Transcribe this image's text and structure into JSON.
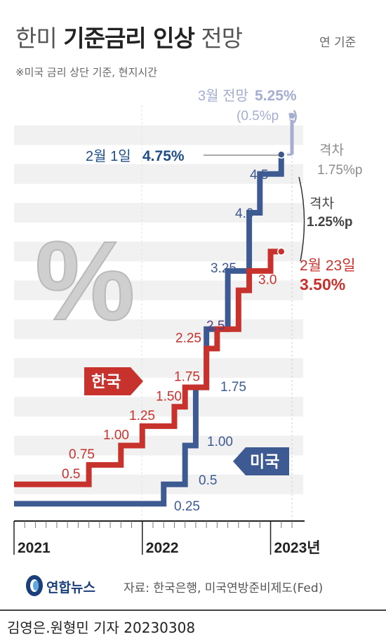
{
  "header": {
    "title_pre": "한미 ",
    "title_bold": "기준금리 인상",
    "title_post": " 전망",
    "basis": "연 기준",
    "note": "※미국 금리 상단 기준, 현지시간"
  },
  "footer": {
    "logo": "연합뉴스",
    "source": "자료: 한국은행, 미국연방준비제도(Fed)",
    "credit": "김영은.원형민 기자  20230308"
  },
  "colors": {
    "korea": "#c8322d",
    "us": "#3e5a93",
    "us_dark": "#1f4e87",
    "projection": "#a5add0",
    "gray": "#8c8c8c",
    "grid": "#f1f1f1",
    "purple": "#5a3a7a"
  },
  "chart_data": {
    "type": "line",
    "step": true,
    "title": "한미 기준금리 인상 전망",
    "ylim": [
      0,
      5.5
    ],
    "xlim": [
      "2021-01",
      "2023-03"
    ],
    "x_tick_labels": [
      "2021",
      "2022",
      "2023년"
    ],
    "grid": true,
    "badge": "%",
    "series": [
      {
        "name": "한국",
        "points": [
          {
            "x": "2021-01",
            "y": 0.5
          },
          {
            "x": "2021-08",
            "y": 0.75
          },
          {
            "x": "2021-11",
            "y": 1.0
          },
          {
            "x": "2022-01",
            "y": 1.25
          },
          {
            "x": "2022-04",
            "y": 1.5
          },
          {
            "x": "2022-05",
            "y": 1.75
          },
          {
            "x": "2022-07",
            "y": 2.25
          },
          {
            "x": "2022-08",
            "y": 2.5
          },
          {
            "x": "2022-10",
            "y": 3.0
          },
          {
            "x": "2022-11",
            "y": 3.25
          },
          {
            "x": "2023-01",
            "y": 3.5
          },
          {
            "x": "2023-02",
            "y": 3.5
          }
        ],
        "labels": [
          {
            "text": "0.5",
            "y": 0.5
          },
          {
            "text": "0.75",
            "y": 0.75
          },
          {
            "text": "1.00",
            "y": 1.0
          },
          {
            "text": "1.25",
            "y": 1.25
          },
          {
            "text": "1.50",
            "y": 1.5
          },
          {
            "text": "1.75",
            "y": 1.75
          },
          {
            "text": "2.25",
            "y": 2.25
          },
          {
            "text": "3.0",
            "y": 3.0
          }
        ]
      },
      {
        "name": "미국",
        "points": [
          {
            "x": "2021-01",
            "y": 0.25
          },
          {
            "x": "2022-03",
            "y": 0.5
          },
          {
            "x": "2022-05",
            "y": 1.0
          },
          {
            "x": "2022-06",
            "y": 1.75
          },
          {
            "x": "2022-07",
            "y": 2.5
          },
          {
            "x": "2022-09",
            "y": 3.25
          },
          {
            "x": "2022-11",
            "y": 4.0
          },
          {
            "x": "2022-12",
            "y": 4.5
          },
          {
            "x": "2023-02",
            "y": 4.75
          }
        ],
        "labels": [
          {
            "text": "0.25",
            "y": 0.25
          },
          {
            "text": "0.5",
            "y": 0.5
          },
          {
            "text": "1.00",
            "y": 1.0
          },
          {
            "text": "1.75",
            "y": 1.75
          },
          {
            "text": "2.5",
            "y": 2.5
          },
          {
            "text": "3.25",
            "y": 3.25
          },
          {
            "text": "4.0",
            "y": 4.0
          },
          {
            "text": "4.5",
            "y": 4.5
          }
        ]
      }
    ],
    "projection": {
      "x": "2023-03",
      "from": 4.75,
      "to": 5.25,
      "label": "3월 전망",
      "value": "5.25%",
      "delta": "(0.5%p",
      "arrow": "↑)"
    },
    "annotations": {
      "us_point": {
        "x": "2023-02",
        "y": 4.75,
        "label": "2월 1일",
        "value": "4.75%"
      },
      "kr_point": {
        "x": "2023-02",
        "y": 3.5,
        "label": "2월 23일",
        "value": "3.50%"
      },
      "gap_current": {
        "label": "격차",
        "value": "1.25%p"
      },
      "gap_projected": {
        "label": "격차",
        "value": "1.75%p"
      }
    }
  }
}
